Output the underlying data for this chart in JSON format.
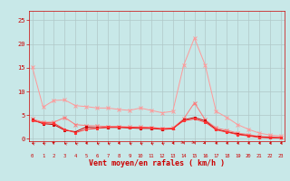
{
  "background_color": "#c8e8e8",
  "grid_color": "#b0c8c8",
  "xlabel": "Vent moyen/en rafales ( km/h )",
  "xlabel_color": "#cc0000",
  "xlabel_fontsize": 6,
  "xtick_labels": [
    "0",
    "1",
    "2",
    "3",
    "4",
    "5",
    "6",
    "7",
    "8",
    "9",
    "10",
    "11",
    "12",
    "13",
    "14",
    "15",
    "16",
    "17",
    "18",
    "19",
    "20",
    "21",
    "22",
    "23"
  ],
  "ytick_labels": [
    "0",
    "5",
    "10",
    "15",
    "20",
    "25"
  ],
  "ylim": [
    -0.5,
    27
  ],
  "xlim": [
    -0.3,
    23.3
  ],
  "series": [
    {
      "color": "#ff9999",
      "marker": "x",
      "x": [
        0,
        1,
        2,
        3,
        4,
        5,
        6,
        7,
        8,
        9,
        10,
        11,
        12,
        13,
        14,
        15,
        16,
        17,
        18,
        19,
        20,
        21,
        22,
        23
      ],
      "y": [
        15.2,
        6.7,
        8.1,
        8.2,
        7.0,
        6.8,
        6.5,
        6.5,
        6.2,
        6.0,
        6.5,
        6.0,
        5.5,
        5.8,
        15.5,
        21.3,
        15.5,
        5.8,
        4.5,
        3.0,
        2.0,
        1.2,
        0.8,
        0.6
      ]
    },
    {
      "color": "#ff7777",
      "marker": "x",
      "x": [
        0,
        1,
        2,
        3,
        4,
        5,
        6,
        7,
        8,
        9,
        10,
        11,
        12,
        13,
        14,
        15,
        16,
        17,
        18,
        19,
        20,
        21,
        22,
        23
      ],
      "y": [
        4.2,
        3.5,
        3.5,
        4.5,
        3.0,
        2.8,
        2.7,
        2.6,
        2.6,
        2.5,
        2.5,
        2.4,
        2.2,
        2.3,
        4.2,
        7.6,
        4.0,
        2.3,
        1.8,
        1.2,
        0.9,
        0.5,
        0.4,
        0.3
      ]
    },
    {
      "color": "#cc0000",
      "marker": "s",
      "x": [
        0,
        1,
        2,
        3,
        4,
        5,
        6,
        7,
        8,
        9,
        10,
        11,
        12,
        13,
        14,
        15,
        16,
        17,
        18,
        19,
        20,
        21,
        22,
        23
      ],
      "y": [
        4.0,
        3.2,
        3.0,
        1.8,
        1.5,
        2.5,
        2.3,
        2.4,
        2.4,
        2.3,
        2.2,
        2.2,
        2.0,
        2.1,
        4.0,
        4.5,
        3.8,
        2.0,
        1.5,
        1.0,
        0.7,
        0.4,
        0.3,
        0.2
      ]
    },
    {
      "color": "#ff3333",
      "marker": "s",
      "x": [
        0,
        1,
        2,
        3,
        4,
        5,
        6,
        7,
        8,
        9,
        10,
        11,
        12,
        13,
        14,
        15,
        16,
        17,
        18,
        19,
        20,
        21,
        22,
        23
      ],
      "y": [
        3.8,
        3.4,
        3.3,
        2.0,
        1.3,
        2.0,
        2.2,
        2.5,
        2.5,
        2.4,
        2.4,
        2.3,
        2.1,
        2.2,
        3.8,
        4.2,
        3.5,
        1.9,
        1.4,
        0.9,
        0.6,
        0.3,
        0.2,
        0.2
      ]
    }
  ],
  "arrow_angles": [
    225,
    225,
    210,
    225,
    225,
    270,
    225,
    225,
    270,
    225,
    225,
    225,
    225,
    270,
    45,
    45,
    60,
    270,
    270,
    270,
    270,
    270,
    270,
    270
  ],
  "arrow_color": "#cc0000",
  "tick_color": "#cc0000"
}
